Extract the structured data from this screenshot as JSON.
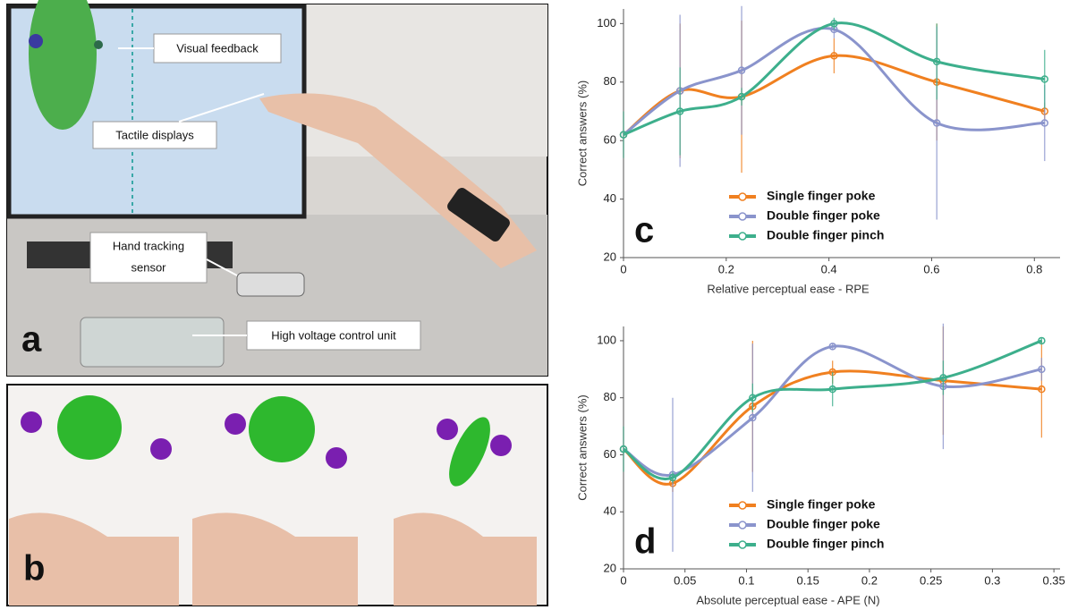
{
  "photo_labels": {
    "letter_a": "a",
    "letter_b": "b",
    "visual_feedback": "Visual feedback",
    "tactile_displays": "Tactile displays",
    "hand_tracking_1": "Hand tracking",
    "hand_tracking_2": "sensor",
    "high_voltage": "High voltage control unit"
  },
  "chart_data": [
    {
      "type": "line",
      "panel_label": "c",
      "x_label": "Relative perceptual ease - RPE",
      "y_label": "Correct answers (%)",
      "x": [
        0,
        0.11,
        0.23,
        0.41,
        0.61,
        0.82
      ],
      "xlim": [
        0,
        0.85
      ],
      "xticks": [
        0,
        0.2,
        0.4,
        0.6,
        0.8
      ],
      "ylim": [
        20,
        105
      ],
      "yticks": [
        20,
        40,
        60,
        80,
        100
      ],
      "series": [
        {
          "name": "Single finger poke",
          "color": "#f08020",
          "values": [
            62,
            77,
            75,
            89,
            80,
            70
          ],
          "errors": [
            8,
            23,
            26,
            6,
            20,
            3
          ]
        },
        {
          "name": "Double finger poke",
          "color": "#8a94cc",
          "values": [
            62,
            77,
            84,
            98,
            66,
            66
          ],
          "errors": [
            8,
            26,
            22,
            3,
            33,
            13
          ]
        },
        {
          "name": "Double finger pinch",
          "color": "#3daf8c",
          "values": [
            62,
            70,
            75,
            100,
            87,
            81
          ],
          "errors": [
            8,
            15,
            3,
            2,
            13,
            10
          ]
        }
      ]
    },
    {
      "type": "line",
      "panel_label": "d",
      "x_label": "Absolute perceptual ease - APE (N)",
      "y_label": "Correct answers (%)",
      "x": [
        0,
        0.04,
        0.105,
        0.17,
        0.26,
        0.34
      ],
      "xlim": [
        0,
        0.355
      ],
      "xticks": [
        0,
        0.05,
        0.1,
        0.15,
        0.2,
        0.25,
        0.3,
        0.35
      ],
      "ylim": [
        20,
        105
      ],
      "yticks": [
        20,
        40,
        60,
        80,
        100
      ],
      "series": [
        {
          "name": "Single finger poke",
          "color": "#f08020",
          "values": [
            62,
            50,
            77,
            89,
            86,
            83
          ],
          "errors": [
            8,
            3,
            23,
            4,
            19,
            17
          ]
        },
        {
          "name": "Double finger poke",
          "color": "#8a94cc",
          "values": [
            62,
            53,
            73,
            98,
            84,
            90
          ],
          "errors": [
            8,
            27,
            26,
            1,
            22,
            4
          ]
        },
        {
          "name": "Double finger pinch",
          "color": "#3daf8c",
          "values": [
            62,
            52,
            80,
            83,
            87,
            100
          ],
          "errors": [
            8,
            2,
            5,
            6,
            6,
            1
          ]
        }
      ]
    }
  ]
}
